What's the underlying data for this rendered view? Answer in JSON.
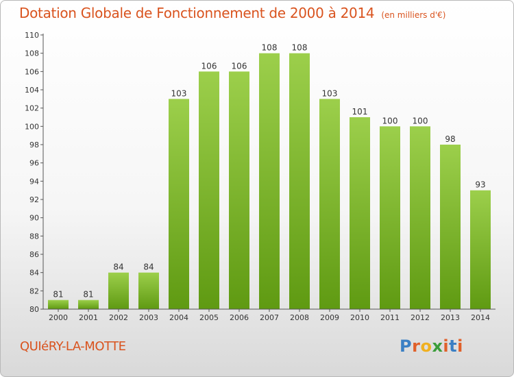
{
  "header": {
    "title": "Dotation Globale de Fonctionnement de 2000 à 2014",
    "subtitle": "(en milliers d'€)"
  },
  "footer": {
    "commune": "QUIéRY-LA-MOTTE",
    "logo_letters": [
      "P",
      "r",
      "o",
      "x",
      "i",
      "t",
      "i"
    ],
    "logo_colors": [
      "#3a7fc4",
      "#e0602a",
      "#f0b020",
      "#3a9d3a",
      "#e0602a",
      "#3a7fc4",
      "#e0602a"
    ]
  },
  "colors": {
    "bar_light": "#9ccf4b",
    "bar_dark": "#5f9a12",
    "axis_text": "#333333",
    "title": "#d9531e"
  },
  "chart_data": {
    "type": "bar",
    "title": "Dotation Globale de Fonctionnement de 2000 à 2014",
    "subtitle": "(en milliers d'€)",
    "categories": [
      "2000",
      "2001",
      "2002",
      "2003",
      "2004",
      "2005",
      "2006",
      "2007",
      "2008",
      "2009",
      "2010",
      "2011",
      "2012",
      "2013",
      "2014"
    ],
    "values": [
      81,
      81,
      84,
      84,
      103,
      106,
      106,
      108,
      108,
      103,
      101,
      100,
      100,
      98,
      93
    ],
    "ylim": [
      80,
      110
    ],
    "yticks": [
      80,
      82,
      84,
      86,
      88,
      90,
      92,
      94,
      96,
      98,
      100,
      102,
      104,
      106,
      108,
      110
    ],
    "grid": false,
    "data_labels": true
  }
}
